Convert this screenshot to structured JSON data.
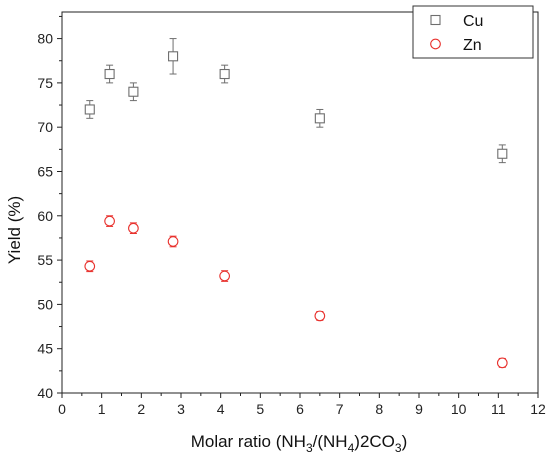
{
  "chart_data": {
    "type": "scatter",
    "xlabel": "Molar ratio (NH3/(NH4)2CO3)",
    "ylabel": "Yield (%)",
    "xlim": [
      0,
      12
    ],
    "ylim": [
      40,
      83
    ],
    "x_ticks": [
      0,
      1,
      2,
      3,
      4,
      5,
      6,
      7,
      8,
      9,
      10,
      11,
      12
    ],
    "y_ticks": [
      40,
      45,
      50,
      55,
      60,
      65,
      70,
      75,
      80
    ],
    "grid": false,
    "legend_position": "top-right",
    "series": [
      {
        "name": "Cu",
        "marker": "square",
        "color": "#6e6e6e",
        "x": [
          0.7,
          1.2,
          1.8,
          2.8,
          4.1,
          6.5,
          11.1
        ],
        "y": [
          72,
          76,
          74,
          78,
          76,
          71,
          67
        ],
        "err": [
          1.0,
          1.0,
          1.0,
          2.0,
          1.0,
          1.0,
          1.0
        ]
      },
      {
        "name": "Zn",
        "marker": "circle",
        "color": "#e8302c",
        "x": [
          0.7,
          1.2,
          1.8,
          2.8,
          4.1,
          6.5,
          11.1
        ],
        "y": [
          54.3,
          59.4,
          58.6,
          57.1,
          53.2,
          48.7,
          43.4
        ],
        "err": [
          0.6,
          0.6,
          0.6,
          0.6,
          0.6,
          0.5,
          0.5
        ]
      }
    ]
  }
}
